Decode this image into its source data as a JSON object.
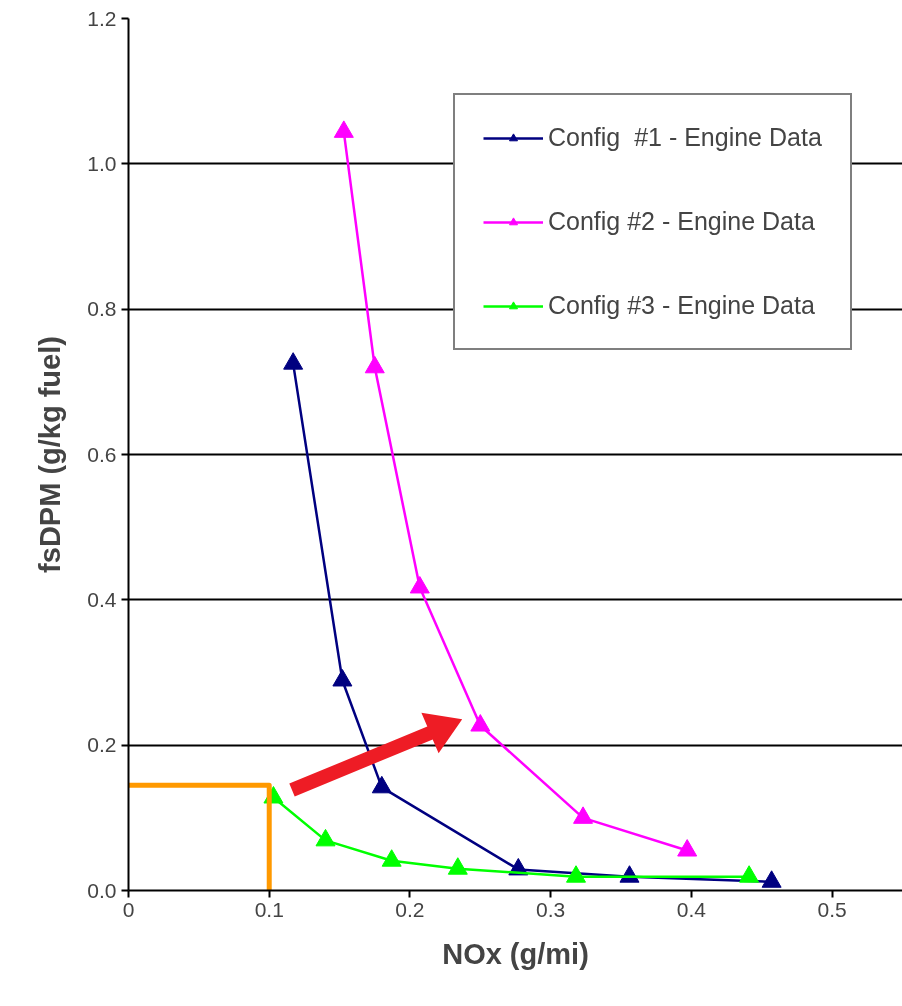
{
  "chart_data": {
    "type": "line",
    "xlabel": "NOx (g/mi)",
    "ylabel": "fsDPM (g/kg fuel)",
    "xlim": [
      0,
      0.55
    ],
    "xticks": [
      0,
      0.1,
      0.2,
      0.3,
      0.4,
      0.5
    ],
    "ylim": [
      0,
      1.2
    ],
    "yticks": [
      {
        "value": 0,
        "label": "0.0"
      },
      {
        "value": 0.2,
        "label": "0.2"
      },
      {
        "value": 0.4,
        "label": "0.4"
      },
      {
        "value": 0.6,
        "label": "0.6"
      },
      {
        "value": 0.8,
        "label": "0.8"
      },
      {
        "value": 1.0,
        "label": "1.0"
      },
      {
        "value": 1.2,
        "label": "1.2"
      }
    ],
    "grid": "y",
    "legend": "top right",
    "marker": "triangle",
    "series": [
      {
        "name": "Config  #1 - Engine Data",
        "color": "#000080",
        "x": [
          0.117,
          0.152,
          0.18,
          0.277,
          0.356,
          0.457
        ],
        "values": [
          0.725,
          0.289,
          0.142,
          0.029,
          0.019,
          0.012
        ]
      },
      {
        "name": "Config #2 - Engine Data",
        "color": "#ff00ff",
        "x": [
          0.153,
          0.175,
          0.207,
          0.25,
          0.323,
          0.397
        ],
        "values": [
          1.044,
          0.72,
          0.417,
          0.227,
          0.1,
          0.055
        ]
      },
      {
        "name": "Config #3 - Engine Data",
        "color": "#00ff00",
        "x": [
          0.103,
          0.14,
          0.187,
          0.234,
          0.318,
          0.441
        ],
        "values": [
          0.128,
          0.069,
          0.041,
          0.03,
          0.019,
          0.019
        ]
      },
      {
        "color": "#ff9900",
        "marker": "none",
        "x": [
          0,
          0.1,
          0.1
        ],
        "values": [
          0.145,
          0.145,
          0
        ]
      }
    ]
  }
}
